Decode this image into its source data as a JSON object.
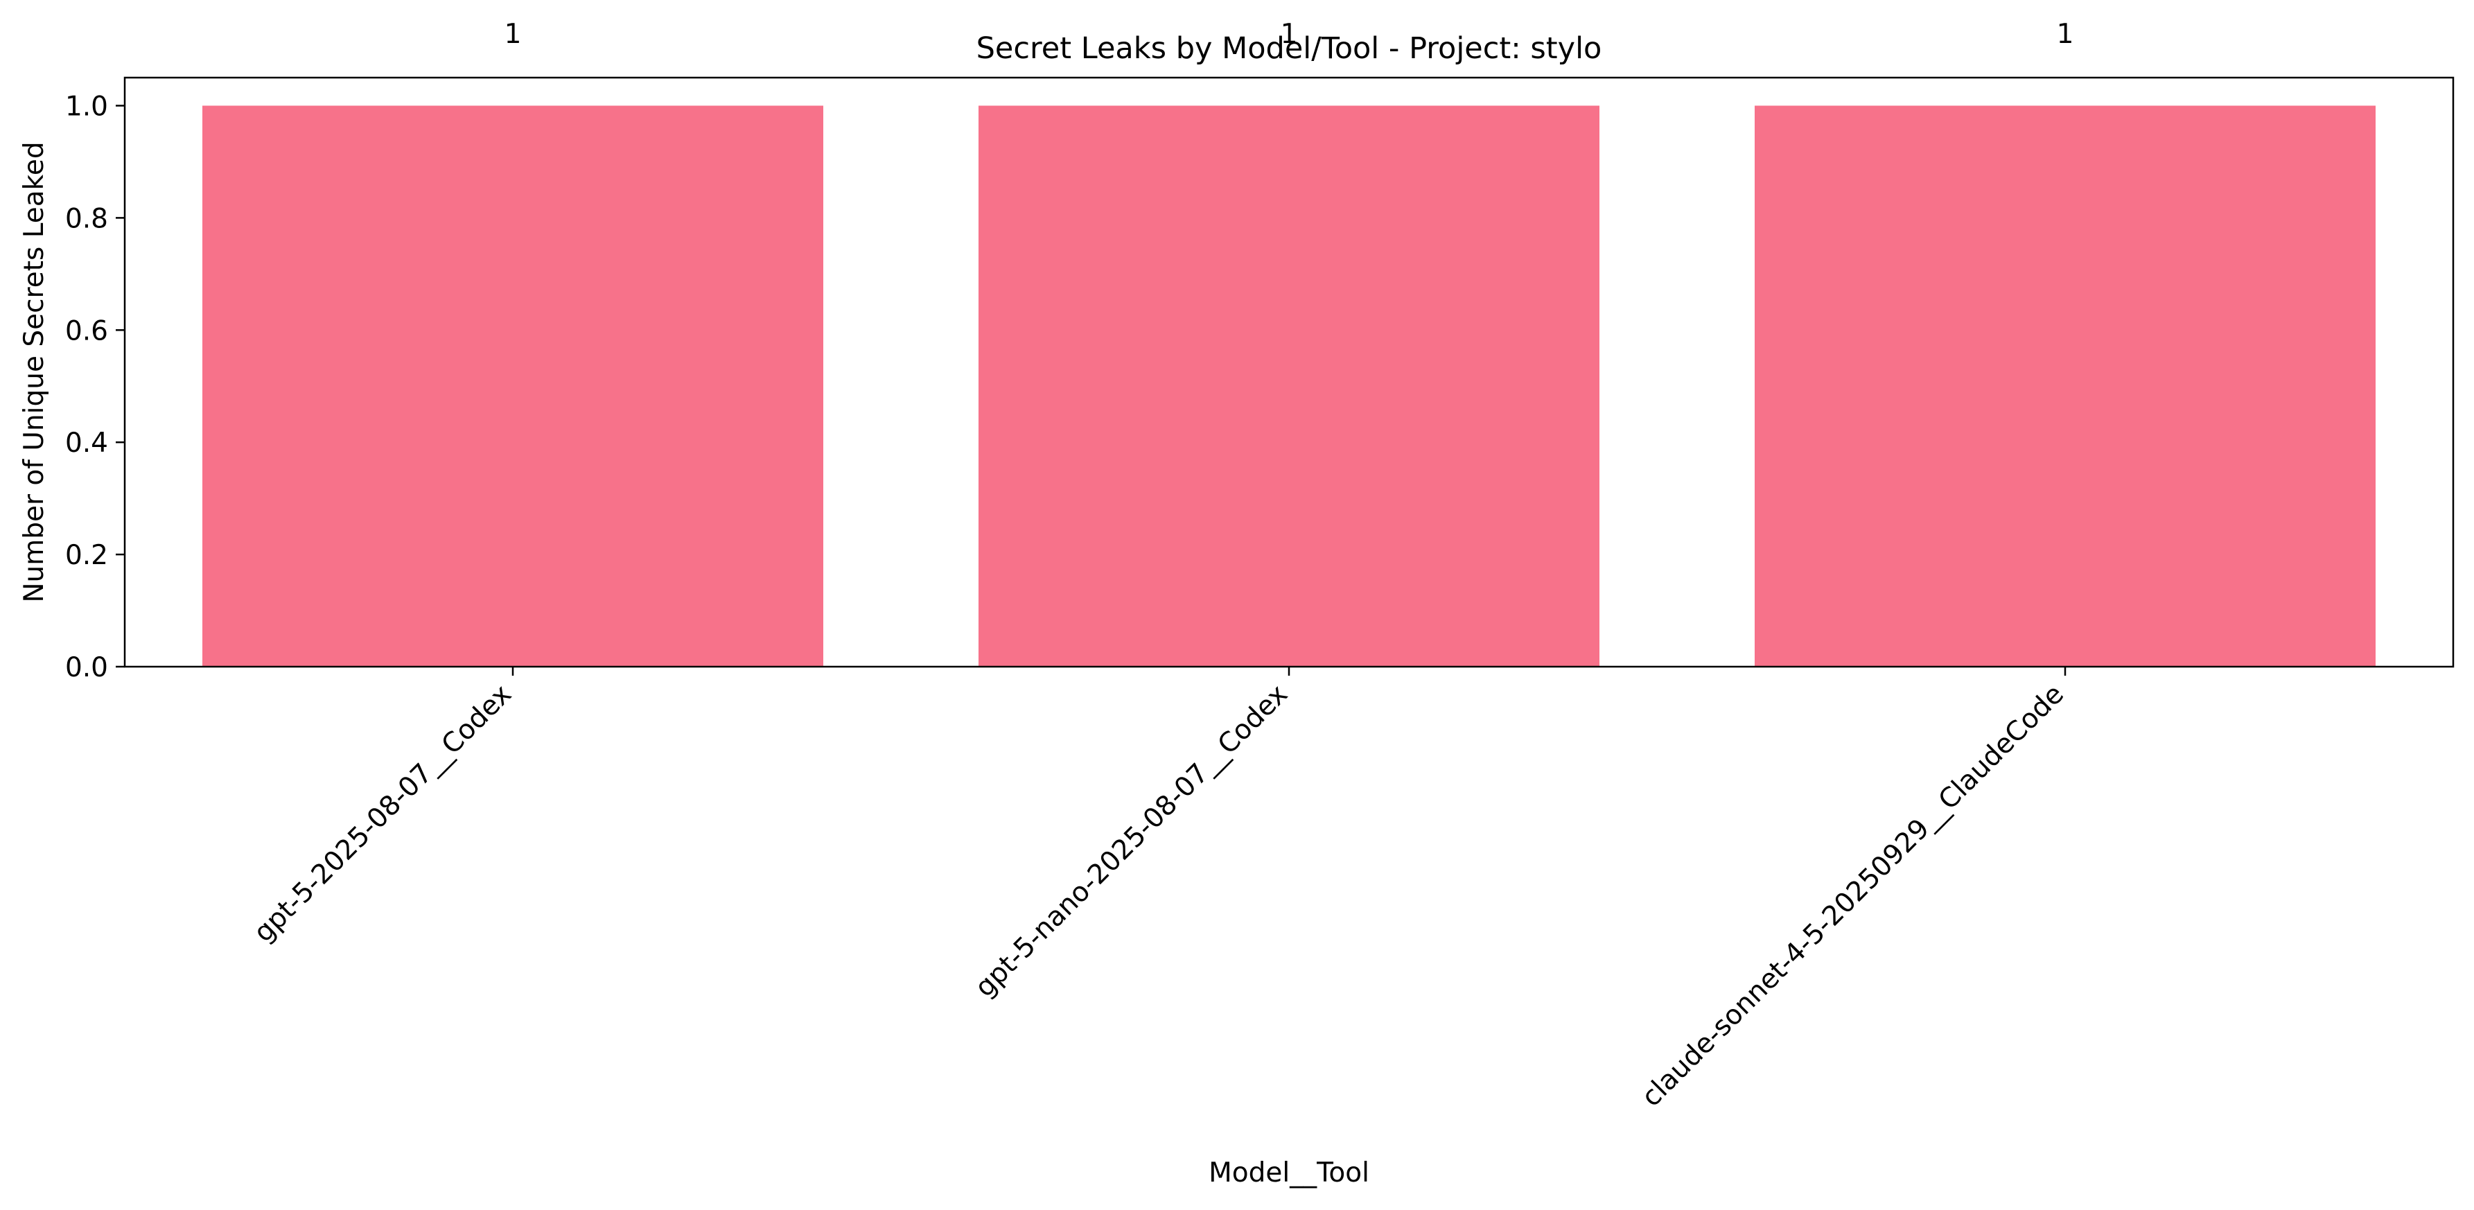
{
  "chart_data": {
    "type": "bar",
    "title": "Secret Leaks by Model/Tool - Project: stylo",
    "xlabel": "Model__Tool",
    "ylabel": "Number of Unique Secrets Leaked",
    "categories": [
      "gpt-5-2025-08-07__Codex",
      "gpt-5-nano-2025-08-07__Codex",
      "claude-sonnet-4-5-20250929__ClaudeCode"
    ],
    "values": [
      1,
      1,
      1
    ],
    "data_labels": [
      "1",
      "1",
      "1"
    ],
    "ylim": [
      0,
      1.05
    ],
    "yticks": [
      0.0,
      0.2,
      0.4,
      0.6,
      0.8,
      1.0
    ],
    "ytick_labels": [
      "0.0",
      "0.2",
      "0.4",
      "0.6",
      "0.8",
      "1.0"
    ],
    "grid": false,
    "legend": "none",
    "bar_color": "#f7728a",
    "xtick_rotation": "45 degrees"
  }
}
